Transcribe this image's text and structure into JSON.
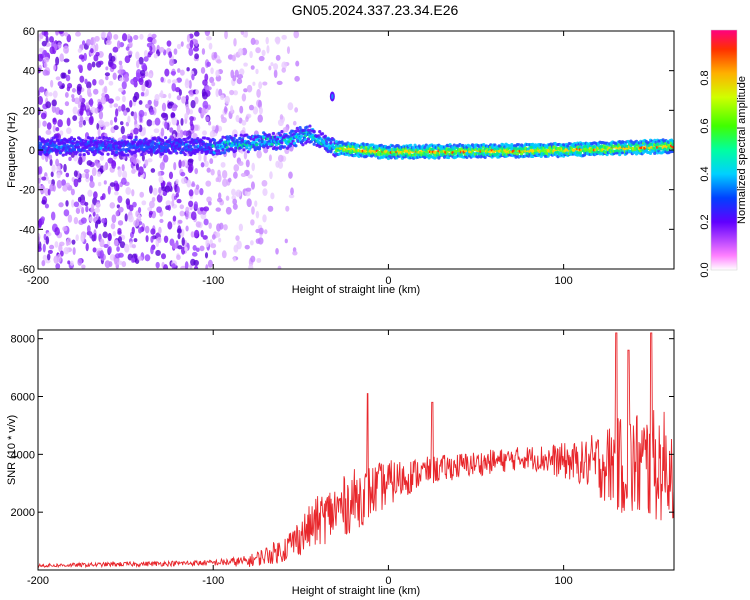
{
  "title": "GN05.2024.337.23.34.E26",
  "chart_data": [
    {
      "type": "heatmap",
      "xlabel": "Height of straight line (km)",
      "ylabel": "Frequency (Hz)",
      "xlim": [
        -200,
        163
      ],
      "ylim": [
        -60,
        60
      ],
      "xticks": [
        "-200",
        "-100",
        "0",
        "100"
      ],
      "yticks": [
        "60",
        "40",
        "20",
        "0",
        "-20",
        "-40",
        "-60"
      ],
      "colorbar": {
        "label": "Normalized spectral amplitude",
        "range": [
          0,
          1
        ],
        "ticks": [
          "0.0",
          "0.2",
          "0.4",
          "0.6",
          "0.8"
        ]
      },
      "features": {
        "scatter_region_x": [
          -200,
          -60
        ],
        "band_center_hz": [
          {
            "x": -200,
            "y": 2
          },
          {
            "x": -100,
            "y": 2
          },
          {
            "x": -60,
            "y": 5
          },
          {
            "x": -45,
            "y": 8
          },
          {
            "x": -30,
            "y": 1
          },
          {
            "x": 0,
            "y": -1
          },
          {
            "x": 100,
            "y": 0
          },
          {
            "x": 163,
            "y": 2
          }
        ],
        "spike": {
          "x": -32,
          "y": 27
        }
      }
    },
    {
      "type": "line",
      "xlabel": "Height of straight line (km)",
      "ylabel": "SNR (10 * v/v)",
      "xlim": [
        -200,
        163
      ],
      "ylim": [
        0,
        8300
      ],
      "xticks": [
        "-200",
        "-100",
        "0",
        "100"
      ],
      "yticks": [
        "2000",
        "4000",
        "6000",
        "8000"
      ],
      "color": "#e8262b",
      "envelope": [
        {
          "x": -200,
          "base": 150,
          "amp": 120
        },
        {
          "x": -100,
          "base": 250,
          "amp": 200
        },
        {
          "x": -80,
          "base": 300,
          "amp": 400
        },
        {
          "x": -60,
          "base": 700,
          "amp": 900
        },
        {
          "x": -40,
          "base": 1700,
          "amp": 1800
        },
        {
          "x": -20,
          "base": 2400,
          "amp": 2200
        },
        {
          "x": 0,
          "base": 3000,
          "amp": 1600
        },
        {
          "x": 20,
          "base": 3400,
          "amp": 1000
        },
        {
          "x": 40,
          "base": 3600,
          "amp": 900
        },
        {
          "x": 80,
          "base": 3900,
          "amp": 800
        },
        {
          "x": 110,
          "base": 3700,
          "amp": 1500
        },
        {
          "x": 140,
          "base": 3600,
          "amp": 4000
        },
        {
          "x": 163,
          "base": 3600,
          "amp": 3800
        }
      ],
      "peaks": [
        {
          "x": -12,
          "y": 6100
        },
        {
          "x": 25,
          "y": 5800
        },
        {
          "x": 130,
          "y": 8200
        },
        {
          "x": 150,
          "y": 8200
        },
        {
          "x": 137,
          "y": 7600
        }
      ]
    }
  ]
}
